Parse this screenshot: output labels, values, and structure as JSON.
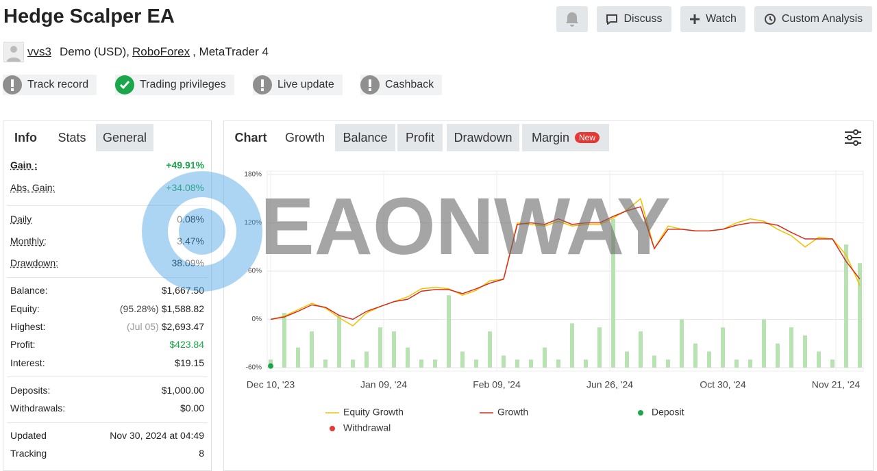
{
  "header": {
    "title": "Hedge Scalper EA",
    "user": "vvs3",
    "account": "Demo (USD)",
    "broker": "RoboForex",
    "platform": ", MetaTrader 4",
    "buttons": [
      "Discuss",
      "Watch",
      "Custom Analysis"
    ],
    "badges": [
      {
        "label": "Track record",
        "ok": false
      },
      {
        "label": "Trading privileges",
        "ok": true
      },
      {
        "label": "Live update",
        "ok": false
      },
      {
        "label": "Cashback",
        "ok": false
      }
    ]
  },
  "left_tabs": [
    "Info",
    "Stats",
    "General"
  ],
  "stats": [
    {
      "label": "Gain :",
      "value": "+49.91%",
      "positive": true
    },
    {
      "label": "Abs. Gain:",
      "value": "+34.08%",
      "positive": true
    },
    {
      "label": "Daily",
      "value": "0.08%"
    },
    {
      "label": "Monthly:",
      "value": "3.47%"
    },
    {
      "label": "Drawdown:",
      "value": "38.09%"
    },
    {
      "label": "Balance:",
      "value": "$1,667.50"
    },
    {
      "label": "Equity:",
      "note": "(95.28%)",
      "value": "$1,588.82"
    },
    {
      "label": "Highest:",
      "note": "(Jul 05)",
      "value": "$2,693.47"
    },
    {
      "label": "Profit:",
      "value": "$423.84",
      "positive": true
    },
    {
      "label": "Interest:",
      "value": "$19.15"
    },
    {
      "label": "Deposits:",
      "value": "$1,000.00"
    },
    {
      "label": "Withdrawals:",
      "value": "$0.00"
    },
    {
      "label": "Updated",
      "value": "Nov 30, 2024 at 04:49"
    },
    {
      "label": "Tracking",
      "value": "8"
    }
  ],
  "chart_tabs": [
    "Chart",
    "Growth",
    "Balance",
    "Profit",
    "Drawdown",
    "Margin"
  ],
  "chart_tab_badge": "New",
  "watermark": "EAONWAY",
  "chart_data": {
    "type": "line",
    "xlim": [
      0,
      43
    ],
    "xticks": [
      {
        "value": 0,
        "label": "Dec 10, '23"
      },
      {
        "value": 8.25,
        "label": "Jan 09, '24"
      },
      {
        "value": 16.5,
        "label": "Feb 09, '24"
      },
      {
        "value": 24.75,
        "label": "Jun 26, '24"
      },
      {
        "value": 33,
        "label": "Oct 30, '24"
      },
      {
        "value": 41.25,
        "label": "Nov 21, '24"
      }
    ],
    "ylim": [
      -60,
      180
    ],
    "yticks": [
      {
        "value": -60,
        "label": "-60%"
      },
      {
        "value": 0,
        "label": "0%"
      },
      {
        "value": 60,
        "label": "60%"
      },
      {
        "value": 120,
        "label": "120%"
      },
      {
        "value": 180,
        "label": "180%"
      }
    ],
    "grid": true,
    "x": [
      0,
      1,
      2,
      3,
      4,
      5,
      6,
      7,
      8,
      9,
      10,
      11,
      12,
      13,
      14,
      15,
      16,
      17,
      18,
      19,
      20,
      21,
      22,
      23,
      24,
      25,
      26,
      27,
      28,
      29,
      30,
      31,
      32,
      33,
      34,
      35,
      36,
      37,
      38,
      39,
      40,
      41,
      42,
      43
    ],
    "bars": {
      "color": "#b8e2b2",
      "values": [
        -50,
        8,
        -35,
        -15,
        -50,
        5,
        -50,
        -40,
        -10,
        -15,
        -35,
        -50,
        -50,
        30,
        -40,
        -50,
        -15,
        -45,
        -50,
        -50,
        -35,
        -50,
        -5,
        -50,
        -10,
        125,
        -40,
        -15,
        -45,
        -50,
        0,
        -30,
        -40,
        -10,
        -50,
        -50,
        0,
        -30,
        -10,
        -20,
        -40,
        -50,
        93,
        70
      ]
    },
    "series": [
      {
        "name": "Equity Growth",
        "color": "#f2c200",
        "values": [
          0,
          4,
          12,
          20,
          14,
          2,
          -8,
          8,
          16,
          22,
          28,
          38,
          40,
          38,
          30,
          36,
          48,
          50,
          120,
          118,
          116,
          122,
          116,
          118,
          118,
          126,
          136,
          150,
          88,
          116,
          112,
          110,
          110,
          112,
          120,
          125,
          122,
          112,
          104,
          90,
          102,
          100,
          80,
          42
        ]
      },
      {
        "name": "Growth",
        "color": "#d62c1f",
        "values": [
          0,
          3,
          10,
          18,
          15,
          5,
          0,
          10,
          16,
          22,
          25,
          35,
          37,
          37,
          32,
          38,
          45,
          50,
          118,
          120,
          118,
          125,
          118,
          120,
          120,
          128,
          135,
          140,
          88,
          112,
          112,
          110,
          110,
          112,
          117,
          120,
          120,
          117,
          108,
          100,
          100,
          100,
          72,
          50
        ]
      }
    ],
    "markers": [
      {
        "name": "Deposit",
        "color": "#1aa64a",
        "x": [
          0
        ],
        "values": [
          -58
        ]
      },
      {
        "name": "Withdrawal",
        "color": "#e53935",
        "x": [],
        "values": []
      }
    ]
  }
}
